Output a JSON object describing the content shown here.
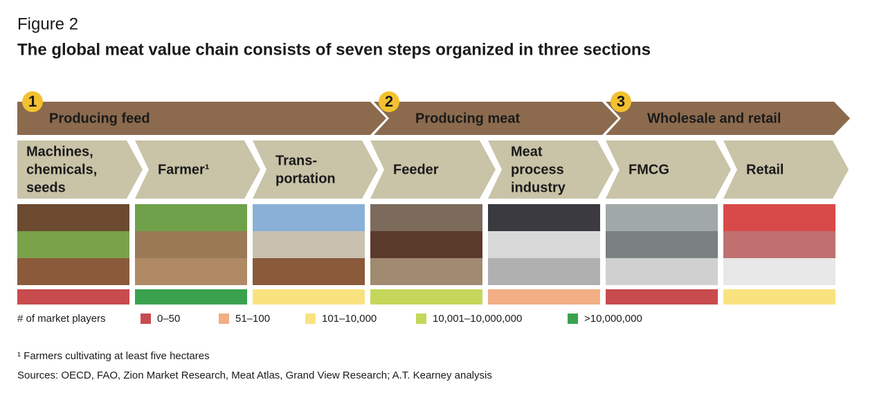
{
  "header": {
    "figure_label": "Figure 2",
    "title": "The global meat value chain consists of seven steps organized in three sections"
  },
  "sections": [
    {
      "number": "1",
      "label": "Producing feed"
    },
    {
      "number": "2",
      "label": "Producing meat"
    },
    {
      "number": "3",
      "label": "Wholesale and retail"
    }
  ],
  "steps": [
    {
      "lines": [
        "Machines,",
        "chemicals,",
        "seeds"
      ],
      "color": "#c84b4e"
    },
    {
      "lines": [
        "Farmer¹"
      ],
      "color": "#3aa24f"
    },
    {
      "lines": [
        "Trans-",
        "portation"
      ],
      "color": "#f8e380"
    },
    {
      "lines": [
        "Feeder"
      ],
      "color": "#c5d75a"
    },
    {
      "lines": [
        "Meat",
        "process",
        "industry"
      ],
      "color": "#f2ae84"
    },
    {
      "lines": [
        "FMCG"
      ],
      "color": "#c84b4e"
    },
    {
      "lines": [
        "Retail"
      ],
      "color": "#f8e380"
    }
  ],
  "legend": {
    "title": "# of market players",
    "items": [
      {
        "label": "0–50",
        "color": "#c84b4e"
      },
      {
        "label": "51–100",
        "color": "#f2ae84"
      },
      {
        "label": "101–10,000",
        "color": "#f8e380"
      },
      {
        "label": "10,001–10,000,000",
        "color": "#c5d75a"
      },
      {
        "label": ">10,000,000",
        "color": "#3aa24f"
      }
    ]
  },
  "footnote": "¹ Farmers cultivating at least five hectares",
  "sources": "Sources: OECD, FAO, Zion Market Research, Meat Atlas, Grand View Research; A.T. Kearney analysis"
}
